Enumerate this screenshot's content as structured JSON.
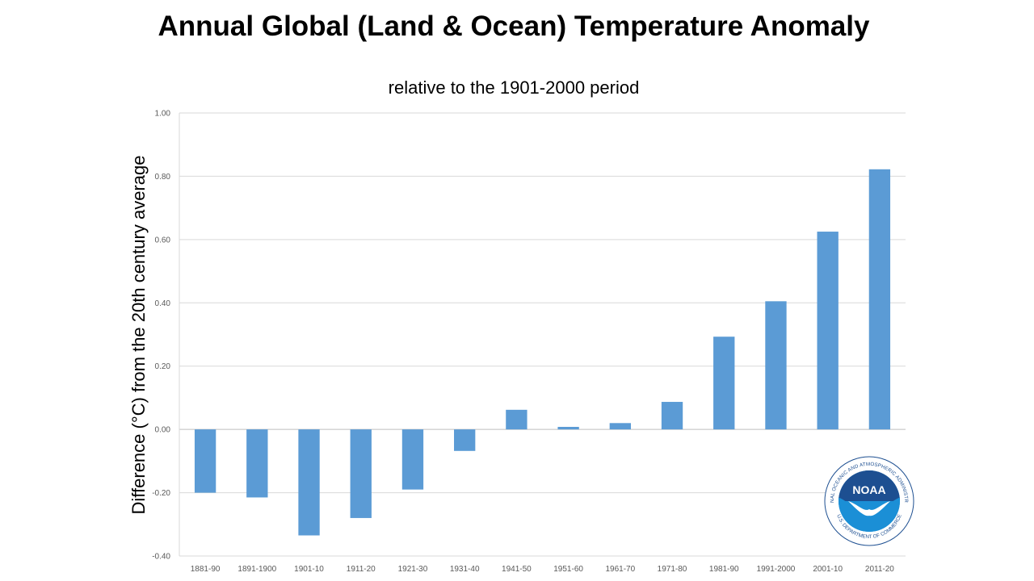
{
  "chart_data": {
    "type": "bar",
    "title": "Annual Global (Land & Ocean) Temperature Anomaly",
    "subtitle": "relative to the 1901-2000 period",
    "xlabel": "",
    "ylabel": "Difference (°C) from the 20th century average",
    "ylim": [
      -0.4,
      1.0
    ],
    "yticks": [
      "1.00",
      "0.80",
      "0.60",
      "0.40",
      "0.20",
      "0.00",
      "-0.20",
      "-0.40"
    ],
    "grid": true,
    "categories": [
      "1881-90",
      "1891-1900",
      "1901-10",
      "1911-20",
      "1921-30",
      "1931-40",
      "1941-50",
      "1951-60",
      "1961-70",
      "1971-80",
      "1981-90",
      "1991-2000",
      "2001-10",
      "2011-20"
    ],
    "values": [
      -0.2,
      -0.215,
      -0.335,
      -0.28,
      -0.19,
      -0.068,
      0.062,
      0.008,
      0.02,
      0.087,
      0.293,
      0.405,
      0.625,
      0.822
    ],
    "bar_color": "#5b9bd5"
  },
  "logo": {
    "name": "noaa-logo-icon",
    "text": "NOAA",
    "ring_text": "NATIONAL OCEANIC AND ATMOSPHERIC ADMINISTRATION",
    "bottom_text": "U.S. DEPARTMENT OF COMMERCE"
  }
}
